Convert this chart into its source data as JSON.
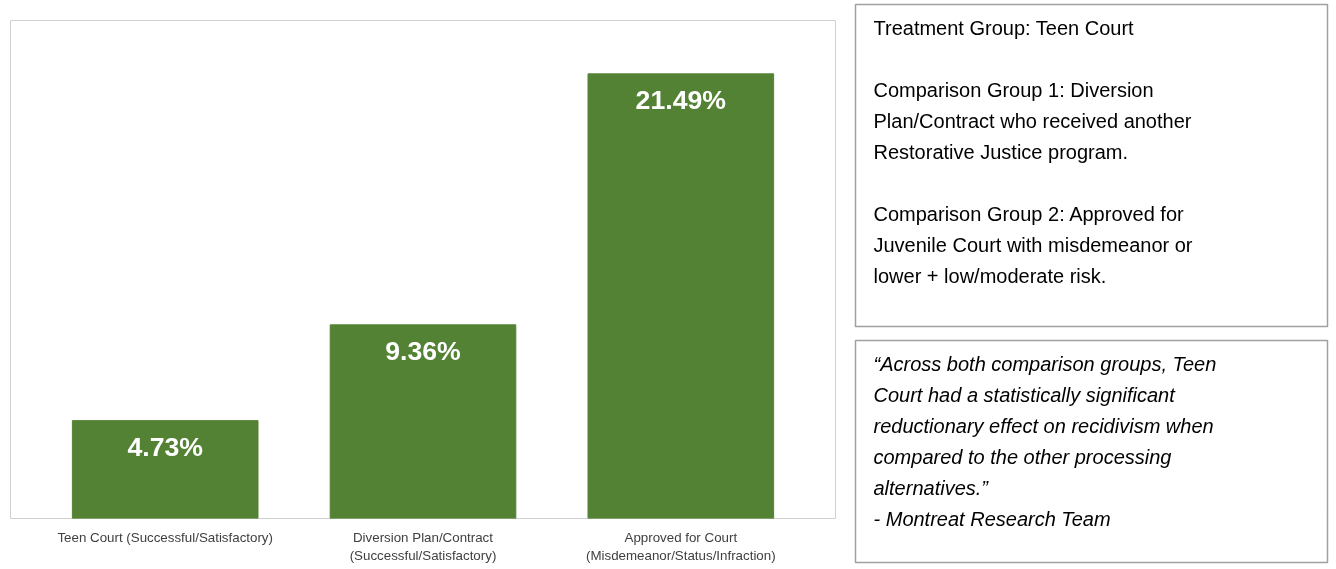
{
  "chart_data": [
    {
      "type": "bar",
      "categories": [
        "Teen Court (Successful/Satisfactory)",
        "Diversion Plan/Contract\n(Successful/Satisfactory)",
        "Approved for Court\n(Misdemeanor/Status/Infraction)"
      ],
      "values": [
        4.73,
        9.36,
        21.49
      ],
      "value_labels": [
        "4.73%",
        "9.36%",
        "21.49%"
      ],
      "color": "#548235",
      "tick_labels": "x",
      "grid": false
    },
    {
      "type": "other",
      "annotations": [
        "Treatment Group: Teen Court",
        "Comparison Group 1: Diversion Plan/Contract who received another Restorative Justice program.",
        "Comparison Group 2: Approved for Juvenile Court with misdemeanor or lower + low/moderate risk."
      ]
    },
    {
      "type": "other",
      "annotations": [
        "“Across both comparison groups, Teen Court had a statistically significant reductionary effect on recidivism when compared to the other processing alternatives.”",
        "- Montreat Research Team"
      ]
    }
  ]
}
